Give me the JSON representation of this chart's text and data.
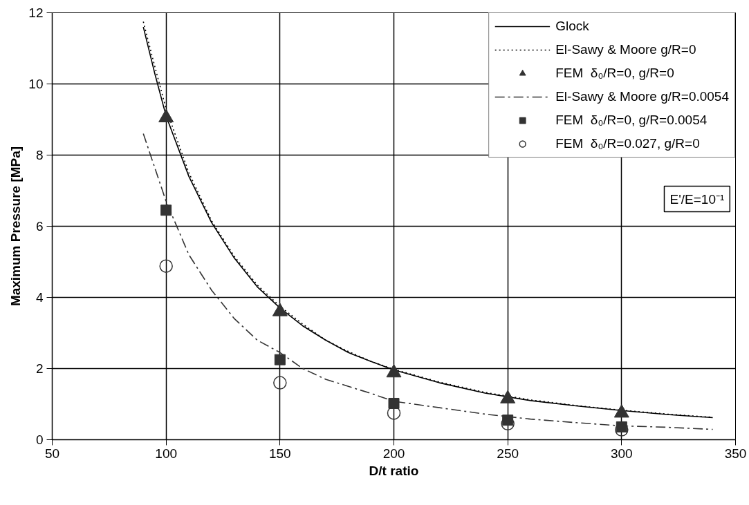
{
  "chart_data": {
    "type": "line",
    "xlabel": "D/t ratio",
    "ylabel": "Maximum Pressure [MPa]",
    "xlim": [
      50,
      350
    ],
    "xticks": [
      50,
      100,
      150,
      200,
      250,
      300,
      350
    ],
    "ylim": [
      0,
      12
    ],
    "yticks": [
      0,
      2,
      4,
      6,
      8,
      10,
      12
    ],
    "grid": true,
    "legend": "top right",
    "annotations": [
      "E'/E=10⁻¹"
    ],
    "series": [
      {
        "name": "Glock",
        "line_style": "solid",
        "marker": "none",
        "color": "#000000",
        "x": [
          90,
          95,
          100,
          110,
          120,
          130,
          140,
          150,
          160,
          170,
          180,
          190,
          200,
          220,
          240,
          260,
          280,
          300,
          320,
          340
        ],
        "values": [
          11.6,
          10.3,
          9.1,
          7.4,
          6.1,
          5.1,
          4.3,
          3.7,
          3.2,
          2.8,
          2.45,
          2.2,
          1.96,
          1.6,
          1.31,
          1.1,
          0.95,
          0.82,
          0.71,
          0.62
        ]
      },
      {
        "name": "El-Sawy & Moore g/R=0",
        "line_style": "dotted",
        "marker": "none",
        "color": "#000000",
        "x": [
          90,
          95,
          100,
          110,
          120,
          130,
          140,
          150,
          160,
          170,
          180,
          190,
          200,
          220,
          240,
          260,
          280,
          300,
          320,
          340
        ],
        "values": [
          11.75,
          10.5,
          9.3,
          7.5,
          6.15,
          5.15,
          4.35,
          3.75,
          3.25,
          2.8,
          2.48,
          2.2,
          1.98,
          1.62,
          1.33,
          1.12,
          0.96,
          0.83,
          0.72,
          0.63
        ]
      },
      {
        "name": "FEM  δ₀/R=0, g/R=0",
        "type": "scatter",
        "marker": "triangle",
        "color": "#333333",
        "x": [
          100,
          150,
          200,
          250,
          300
        ],
        "values": [
          9.05,
          3.6,
          1.88,
          1.15,
          0.75
        ]
      },
      {
        "name": "El-Sawy & Moore g/R=0.0054",
        "line_style": "dashdot",
        "marker": "none",
        "color": "#333333",
        "x": [
          90,
          100,
          110,
          120,
          130,
          140,
          150,
          160,
          170,
          180,
          190,
          200,
          220,
          240,
          260,
          280,
          300,
          320,
          340
        ],
        "values": [
          8.6,
          6.7,
          5.2,
          4.2,
          3.4,
          2.8,
          2.45,
          2.0,
          1.7,
          1.5,
          1.3,
          1.08,
          0.9,
          0.72,
          0.58,
          0.48,
          0.39,
          0.35,
          0.29
        ]
      },
      {
        "name": "FEM  δ₀/R=0, g/R=0.0054",
        "type": "scatter",
        "marker": "square",
        "color": "#333333",
        "x": [
          100,
          150,
          200,
          250,
          300
        ],
        "values": [
          6.45,
          2.25,
          1.02,
          0.55,
          0.36
        ]
      },
      {
        "name": "FEM  δ₀/R=0.027, g/R=0",
        "type": "scatter",
        "marker": "circle_open",
        "color": "#333333",
        "x": [
          100,
          150,
          200,
          250,
          300
        ],
        "values": [
          4.88,
          1.6,
          0.75,
          0.45,
          0.28
        ]
      }
    ]
  }
}
